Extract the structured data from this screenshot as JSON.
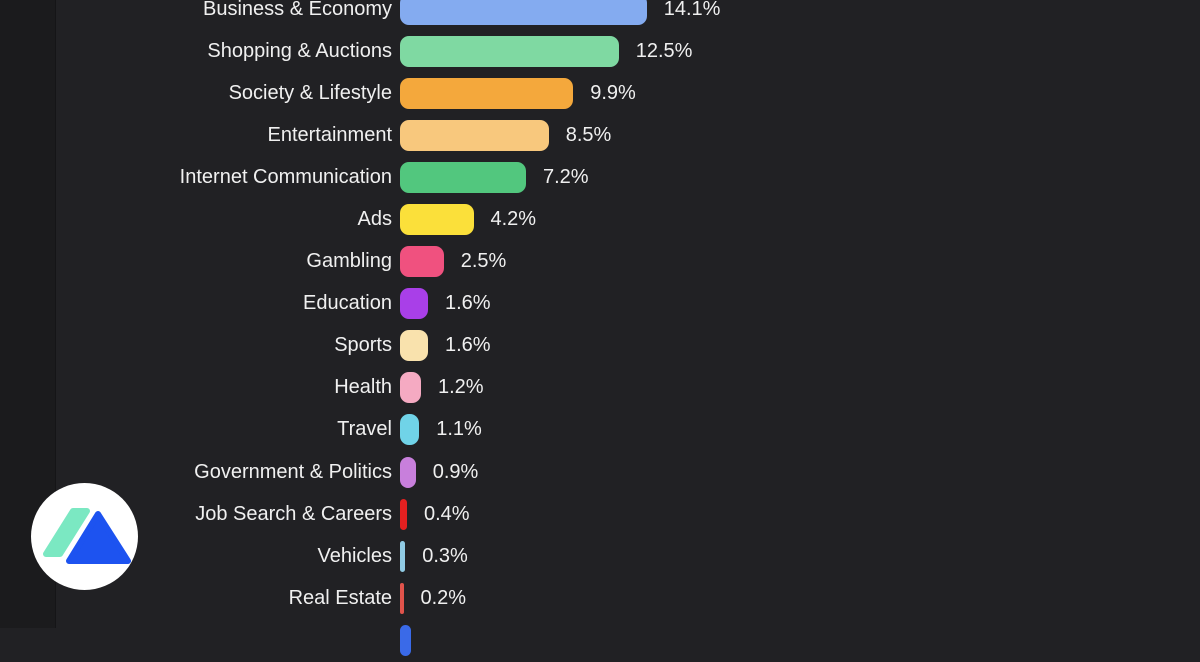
{
  "chart_data": {
    "type": "bar",
    "orientation": "horizontal",
    "title": "",
    "xlabel": "",
    "ylabel": "",
    "categories": [
      "Business & Economy",
      "Shopping & Auctions",
      "Society & Lifestyle",
      "Entertainment",
      "Internet Communication",
      "Ads",
      "Gambling",
      "Education",
      "Sports",
      "Health",
      "Travel",
      "Government & Politics",
      "Job Search & Careers",
      "Vehicles",
      "Real Estate"
    ],
    "values": [
      14.1,
      12.5,
      9.9,
      8.5,
      7.2,
      4.2,
      2.5,
      1.6,
      1.6,
      1.2,
      1.1,
      0.9,
      0.4,
      0.3,
      0.2
    ],
    "value_labels": [
      "14.1%",
      "12.5%",
      "9.9%",
      "8.5%",
      "7.2%",
      "4.2%",
      "2.5%",
      "1.6%",
      "1.6%",
      "1.2%",
      "1.1%",
      "0.9%",
      "0.4%",
      "0.3%",
      "0.2%"
    ],
    "bar_colors": [
      "#84abf0",
      "#7fd9a2",
      "#f4a83c",
      "#f8c87d",
      "#52c77e",
      "#fbe03a",
      "#f0517f",
      "#a93fe8",
      "#f9e2ad",
      "#f5aac2",
      "#70d3e8",
      "#c87fdc",
      "#e32020",
      "#90cbe4",
      "#e0534b"
    ],
    "partial_bottom_bar": {
      "color": "#3a6ae8"
    },
    "grid": "off",
    "legend": "none",
    "background_color": "#212124",
    "left_margin_color": "#1b1b1d",
    "axis_line_color": "#151517",
    "text_color": "#f0f0f0"
  },
  "logo": {
    "name": "mint-slash-blue-triangle-logo",
    "circle_color": "#ffffff",
    "slash_color": "#7be8c2",
    "triangle_color": "#1d53f0"
  }
}
